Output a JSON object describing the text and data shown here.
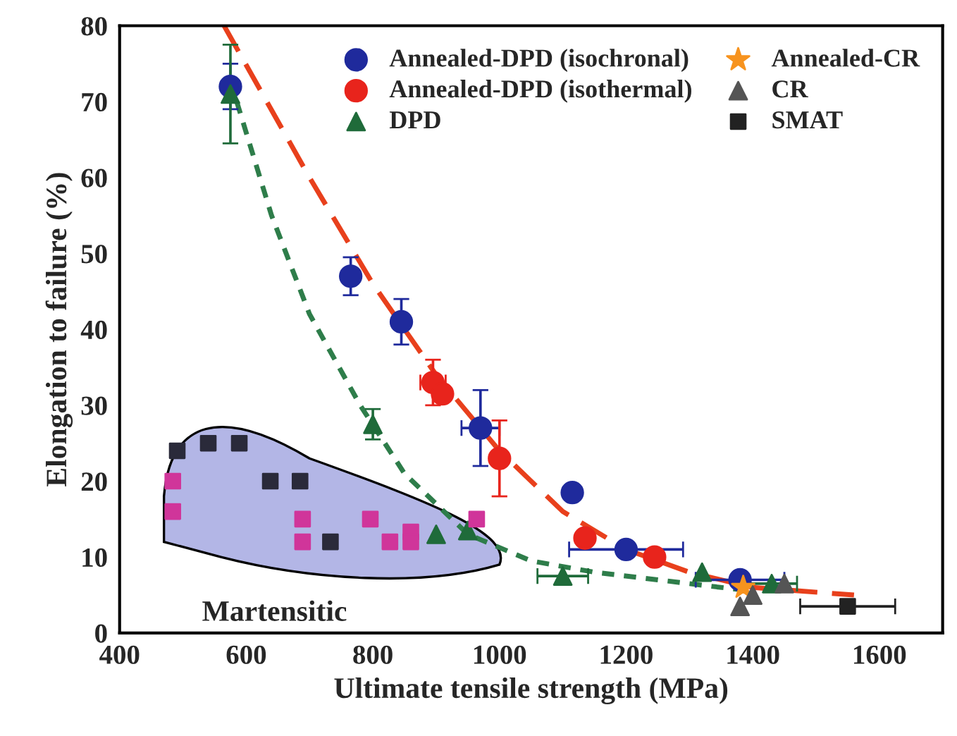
{
  "chart_data": {
    "type": "scatter",
    "xlabel": "Ultimate tensile strength (MPa)",
    "ylabel": "Elongation to failure (%)",
    "xlim": [
      400,
      1700
    ],
    "ylim": [
      0,
      80
    ],
    "xticks": [
      400,
      600,
      800,
      1000,
      1200,
      1400,
      1600
    ],
    "yticks": [
      0,
      10,
      20,
      30,
      40,
      50,
      60,
      70,
      80
    ],
    "grid": false,
    "legend": "top right",
    "annotations": [
      "Martensitic"
    ],
    "series": [
      {
        "type": "line",
        "color": "#e8401c",
        "line_style": "dashed",
        "marker": "none",
        "x": [
          565,
          700,
          800,
          900,
          1000,
          1100,
          1200,
          1300,
          1400,
          1560
        ],
        "values": [
          80,
          60,
          46,
          34,
          24,
          16,
          11,
          8,
          6,
          5
        ]
      },
      {
        "type": "line",
        "color": "#2e7d4a",
        "line_style": "dotted",
        "marker": "none",
        "x": [
          585,
          640,
          700,
          780,
          850,
          950,
          1050,
          1150,
          1250,
          1400
        ],
        "values": [
          70,
          55,
          42,
          30,
          21,
          13,
          9.5,
          8,
          7,
          5.5
        ]
      },
      {
        "name": "Annealed-DPD (isochronal)",
        "color": "#1f2a9c",
        "marker": "circle",
        "x": [
          575,
          765,
          845,
          970,
          1115,
          1200,
          1380
        ],
        "values": [
          72,
          47,
          41,
          27,
          18.5,
          11,
          7
        ],
        "errors": [
          3,
          2.5,
          3,
          5,
          null,
          null,
          null
        ],
        "xerrors": [
          null,
          null,
          null,
          30,
          null,
          90,
          70
        ]
      },
      {
        "name": "Annealed-DPD (isothermal)",
        "color": "#e8241c",
        "marker": "circle",
        "x": [
          895,
          910,
          1000,
          1135,
          1245
        ],
        "values": [
          33,
          31.5,
          23,
          12.5,
          10
        ],
        "errors": [
          3,
          null,
          5,
          null,
          null
        ],
        "xerrors": [
          20,
          null,
          null,
          null,
          null
        ]
      },
      {
        "name": "DPD",
        "color": "#1f6b3a",
        "marker": "triangle",
        "x": [
          575,
          800,
          900,
          950,
          1100,
          1320,
          1430
        ],
        "values": [
          71,
          27.5,
          13,
          13.5,
          7.5,
          8,
          6.5
        ],
        "errors": [
          6.5,
          2,
          null,
          null,
          null,
          null,
          null
        ],
        "xerrors": [
          null,
          null,
          null,
          null,
          40,
          null,
          40
        ]
      },
      {
        "name": "Annealed-CR",
        "color": "#f7931e",
        "marker": "star",
        "x": [
          1385
        ],
        "values": [
          6
        ]
      },
      {
        "name": "CR",
        "color": "#555555",
        "marker": "triangle",
        "x": [
          1380,
          1400,
          1450
        ],
        "values": [
          3.5,
          5,
          6.5
        ]
      },
      {
        "name": "SMAT",
        "color": "#222222",
        "marker": "square",
        "x": [
          1550
        ],
        "values": [
          3.5
        ],
        "xerrors": [
          75
        ]
      },
      {
        "color": "#d0359a",
        "marker": "square",
        "x": [
          484,
          484,
          689,
          689,
          796,
          827,
          860,
          860,
          964
        ],
        "values": [
          20,
          16,
          15,
          12,
          15,
          12,
          13.3,
          12,
          15
        ]
      },
      {
        "color": "#2a2a3a",
        "marker": "square",
        "x": [
          491,
          540,
          589,
          638,
          685,
          733
        ],
        "values": [
          24,
          25,
          25,
          20,
          20,
          12
        ]
      }
    ]
  }
}
